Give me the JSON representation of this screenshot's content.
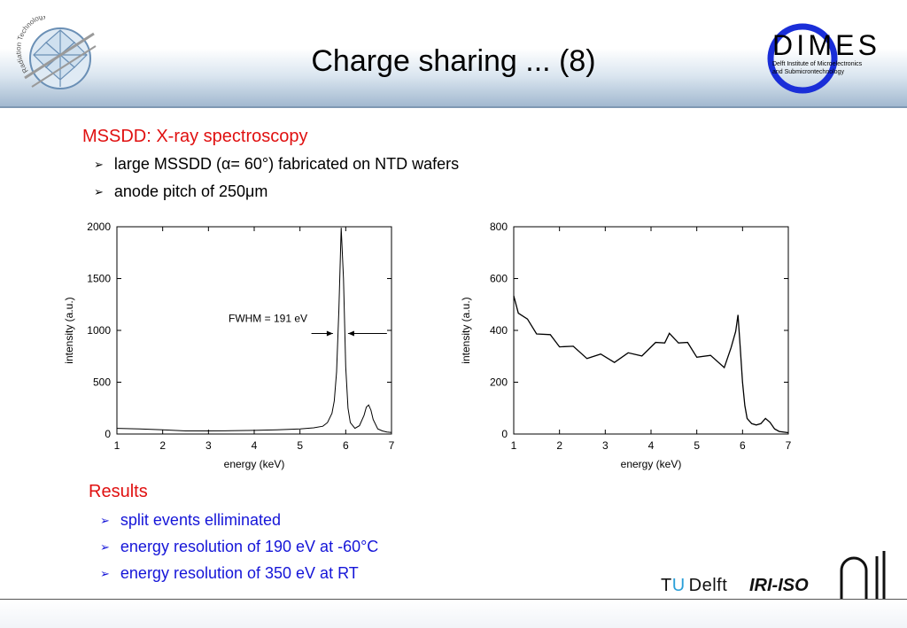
{
  "header": {
    "title": "Charge sharing ... (8)",
    "left_logo": {
      "icon": "radiation-technology-globe-icon",
      "ring_text": "Radiation Technology"
    },
    "right_logo": {
      "icon": "dimes-logo",
      "name": "DIMES",
      "subtitle_line1": "Delft Institute of Microelectronics",
      "subtitle_line2": "and Submicrontechnology"
    }
  },
  "section1": {
    "heading": "MSSDD: X-ray spectroscopy",
    "bullets": [
      {
        "pre": "large MSSDD (",
        "sym": "α",
        "post": " = 60°) fabricated on NTD wafers"
      },
      {
        "pre": "anode pitch of 250 ",
        "sym": "μ",
        "post": "m"
      }
    ]
  },
  "chart_data": [
    {
      "type": "line",
      "xlabel": "energy (keV)",
      "ylabel": "intensity (a.u.)",
      "xlim": [
        1,
        7
      ],
      "ylim": [
        0,
        2000
      ],
      "xticks": [
        "1",
        "2",
        "3",
        "4",
        "5",
        "6",
        "7"
      ],
      "yticks": [
        "0",
        "500",
        "1000",
        "1500",
        "2000"
      ],
      "annotation": "FWHM =  191 eV",
      "series": [
        {
          "x": [
            1.0,
            1.5,
            2.0,
            2.5,
            3.0,
            3.5,
            4.0,
            4.5,
            5.0,
            5.3,
            5.5,
            5.6,
            5.7,
            5.75,
            5.8,
            5.85,
            5.9,
            5.95,
            6.0,
            6.05,
            6.1,
            6.2,
            6.3,
            6.4,
            6.45,
            6.5,
            6.55,
            6.6,
            6.7,
            6.8,
            6.9,
            7.0
          ],
          "y": [
            55,
            50,
            40,
            30,
            30,
            32,
            35,
            40,
            50,
            60,
            75,
            110,
            200,
            320,
            600,
            1200,
            1990,
            1500,
            650,
            250,
            110,
            55,
            80,
            180,
            260,
            280,
            230,
            140,
            50,
            30,
            20,
            15
          ]
        }
      ]
    },
    {
      "type": "line",
      "xlabel": "energy (keV)",
      "ylabel": "intensity (a.u.)",
      "xlim": [
        1,
        7
      ],
      "ylim": [
        0,
        800
      ],
      "xticks": [
        "1",
        "2",
        "3",
        "4",
        "5",
        "6",
        "7"
      ],
      "yticks": [
        "0",
        "200",
        "400",
        "600",
        "800"
      ],
      "series": [
        {
          "x": [
            1.0,
            1.1,
            1.3,
            1.5,
            1.8,
            2.0,
            2.3,
            2.6,
            2.9,
            3.2,
            3.5,
            3.8,
            4.1,
            4.3,
            4.4,
            4.6,
            4.8,
            5.0,
            5.3,
            5.6,
            5.75,
            5.85,
            5.9,
            5.95,
            6.0,
            6.05,
            6.1,
            6.2,
            6.3,
            6.4,
            6.5,
            6.6,
            6.7,
            6.8,
            7.0
          ],
          "y": [
            520,
            480,
            430,
            400,
            370,
            350,
            325,
            305,
            295,
            290,
            300,
            315,
            340,
            365,
            375,
            365,
            340,
            310,
            290,
            270,
            320,
            410,
            460,
            330,
            200,
            110,
            60,
            40,
            35,
            40,
            60,
            45,
            20,
            10,
            5
          ]
        }
      ]
    }
  ],
  "section2": {
    "heading": "Results",
    "bullets": [
      "split events elliminated",
      "energy resolution of 190 eV at -60°C",
      "energy resolution of 350 eV at RT"
    ]
  },
  "footer": {
    "tudelft": {
      "t": "T",
      "u": "U",
      "rest": "Delft"
    },
    "iri": "IRI-ISO",
    "reactor_icon": "reactor-building-icon"
  },
  "colors": {
    "heading_red": "#e01010",
    "bullet_blue": "#1515d8",
    "header_band": "#9fb6ce"
  }
}
